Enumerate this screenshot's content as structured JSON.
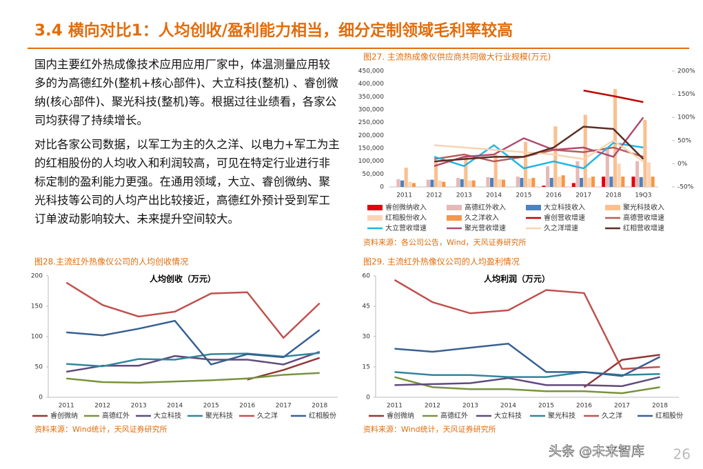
{
  "header": {
    "title": "3.4 横向对比1：人均创收/盈利能力相当，细分定制领域毛利率较高"
  },
  "paragraphs": [
    "国内主要红外热成像技术应用应用厂家中，体温测量应用较多的为高德红外(整机+核心部件)、大立科技(整机) 、睿创微纳(核心部件)、聚光科技(整机)等。根据过往业绩看，各家公司均获得了持续增长。",
    "对比各家公司数据，以军工为主的久之洋、以电力+军工为主的红相股份的人均收入和利润较高，可见在特定行业进行非标定制的盈利能力更强。在通用领域，大立、睿创微纳、聚光科技等公司的人均产出比较接近，高德红外预计受到军工订单波动影响较大、未来提升空间较大。"
  ],
  "chart_data": [
    {
      "type": "combo",
      "caption": "图27. 主流热成像仪供应商共同做大行业规模(万元)",
      "source": "资料来源：各公司公告，Wind，天风证券研究所",
      "categories": [
        "2011",
        "2012",
        "2013",
        "2014",
        "2015",
        "2016",
        "2017",
        "2018",
        "19Q3"
      ],
      "ylim": [
        0,
        450000
      ],
      "yticks": [
        0,
        {
          "value": 50000,
          "label": "50,000"
        },
        {
          "value": 100000,
          "label": "100,000"
        },
        {
          "value": 150000,
          "label": "150,000"
        },
        {
          "value": 200000,
          "label": "200,000"
        },
        {
          "value": 250000,
          "label": "250,000"
        },
        {
          "value": 300000,
          "label": "300,000"
        },
        {
          "value": 350000,
          "label": "350,000"
        },
        {
          "value": 400000,
          "label": "400,000"
        },
        {
          "value": 450000,
          "label": "450,000"
        }
      ],
      "y2lim": [
        -50,
        200
      ],
      "y2ticks": [
        {
          "value": -50,
          "label": "-50%"
        },
        {
          "value": 0,
          "label": "0%"
        },
        {
          "value": 50,
          "label": "50%"
        },
        {
          "value": 100,
          "label": "100%"
        },
        {
          "value": 150,
          "label": "150%"
        },
        {
          "value": 200,
          "label": "200%"
        }
      ],
      "series": [
        {
          "name": "睿创微纳收入",
          "type": "bar",
          "color": "#e3000f",
          "values": [
            null,
            null,
            null,
            null,
            null,
            5000,
            15000,
            40000,
            40000
          ]
        },
        {
          "name": "高德红外收入",
          "type": "bar",
          "color": "#e6b9b8",
          "values": [
            30000,
            28000,
            35000,
            38000,
            40000,
            80000,
            100000,
            155000,
            100000
          ]
        },
        {
          "name": "大立科技收入",
          "type": "bar",
          "color": "#4f81bd",
          "values": [
            25000,
            28000,
            30000,
            35000,
            35000,
            35000,
            35000,
            40000,
            38000
          ]
        },
        {
          "name": "聚光科技收入",
          "type": "bar",
          "color": "#fac090",
          "values": [
            75000,
            100000,
            115000,
            125000,
            175000,
            235000,
            280000,
            380000,
            260000
          ]
        },
        {
          "name": "红相股份收入",
          "type": "bar",
          "color": "#fcd5b5",
          "values": [
            20000,
            25000,
            25000,
            30000,
            32000,
            40000,
            35000,
            90000,
            95000
          ]
        },
        {
          "name": "久之洋收入",
          "type": "bar",
          "color": "#f79646",
          "values": [
            15000,
            20000,
            25000,
            28000,
            35000,
            45000,
            40000,
            40000,
            40000
          ]
        },
        {
          "name": "睿创营收增速",
          "type": "line",
          "axis": "y2",
          "color": "#c00000",
          "values": [
            null,
            null,
            null,
            null,
            null,
            null,
            158,
            146,
            133
          ]
        },
        {
          "name": "高德营收增速",
          "type": "line",
          "axis": "y2",
          "color": "#b65c58",
          "values": [
            null,
            10,
            20,
            5,
            15,
            30,
            25,
            35,
            15
          ]
        },
        {
          "name": "大立营收增速",
          "type": "line",
          "axis": "y2",
          "color": "#1fb5e6",
          "values": [
            null,
            15,
            -5,
            40,
            -10,
            5,
            -10,
            45,
            35
          ]
        },
        {
          "name": "聚光营收增速",
          "type": "line",
          "axis": "y2",
          "color": "#b04a6c",
          "values": [
            null,
            -5,
            15,
            20,
            55,
            30,
            35,
            15,
            100
          ]
        },
        {
          "name": "久之洋增速",
          "type": "line",
          "axis": "y2",
          "color": "#f8d3b0",
          "values": [
            null,
            40,
            35,
            30,
            25,
            20,
            10,
            50,
            5
          ]
        },
        {
          "name": "红相营收增速",
          "type": "line",
          "axis": "y2",
          "color": "#5b2c22",
          "values": [
            null,
            5,
            10,
            15,
            15,
            35,
            80,
            75,
            10
          ]
        }
      ]
    },
    {
      "type": "line",
      "caption": "图28.主流红外热像仪公司的人均创收情况",
      "title": "人均创收（万元）",
      "source": "资料来源：Wind统计，天风证券研究所",
      "categories": [
        "2011",
        "2012",
        "2013",
        "2014",
        "2015",
        "2016",
        "2017",
        "2018"
      ],
      "ylim": [
        0,
        200
      ],
      "yticks": [
        0,
        50,
        100,
        150,
        200
      ],
      "series": [
        {
          "name": "睿创微纳",
          "color": "#943634",
          "values": [
            null,
            null,
            null,
            null,
            null,
            29,
            45,
            65
          ]
        },
        {
          "name": "高德红外",
          "color": "#77933c",
          "values": [
            31,
            25,
            24,
            26,
            28,
            31,
            37,
            40
          ]
        },
        {
          "name": "大立科技",
          "color": "#604a7b",
          "values": [
            42,
            52,
            52,
            68,
            62,
            62,
            54,
            75
          ]
        },
        {
          "name": "聚光科技",
          "color": "#31859c",
          "values": [
            55,
            51,
            63,
            62,
            71,
            72,
            67,
            73
          ]
        },
        {
          "name": "久之洋",
          "color": "#c0504d",
          "values": [
            189,
            152,
            133,
            141,
            171,
            173,
            98,
            155
          ]
        },
        {
          "name": "红相股份",
          "color": "#366092",
          "values": [
            107,
            102,
            113,
            126,
            54,
            71,
            66,
            111
          ]
        }
      ]
    },
    {
      "type": "line",
      "caption": "图29. 主流红外热像仪公司的人均盈利情况",
      "title": "人均利润（万元）",
      "source": "资料来源：Wind统计，天风证券研究所",
      "categories": [
        "2011",
        "2012",
        "2013",
        "2014",
        "2015",
        "2016",
        "2017",
        "2018"
      ],
      "ylim": [
        0,
        60
      ],
      "yticks": [
        0,
        15,
        30,
        45,
        60
      ],
      "series": [
        {
          "name": "睿创微纳",
          "color": "#943634",
          "values": [
            null,
            null,
            null,
            null,
            null,
            5,
            18.5,
            21
          ]
        },
        {
          "name": "高德红外",
          "color": "#77933c",
          "values": [
            10,
            5,
            4,
            4,
            3,
            3,
            2,
            5
          ]
        },
        {
          "name": "大立科技",
          "color": "#604a7b",
          "values": [
            6,
            6.5,
            7,
            9.5,
            6,
            6,
            5.5,
            10
          ]
        },
        {
          "name": "聚光科技",
          "color": "#31859c",
          "values": [
            12.5,
            11,
            11,
            10,
            10,
            12.5,
            11,
            11.5
          ]
        },
        {
          "name": "久之洋",
          "color": "#c0504d",
          "values": [
            58,
            47,
            41.5,
            43,
            53,
            51.5,
            14,
            15
          ]
        },
        {
          "name": "红相股份",
          "color": "#366092",
          "values": [
            24,
            22.5,
            24.5,
            26.5,
            12.5,
            12.5,
            10.5,
            20
          ]
        }
      ]
    }
  ],
  "footer": {
    "watermark": "头条 @未来智库",
    "page": "26"
  }
}
